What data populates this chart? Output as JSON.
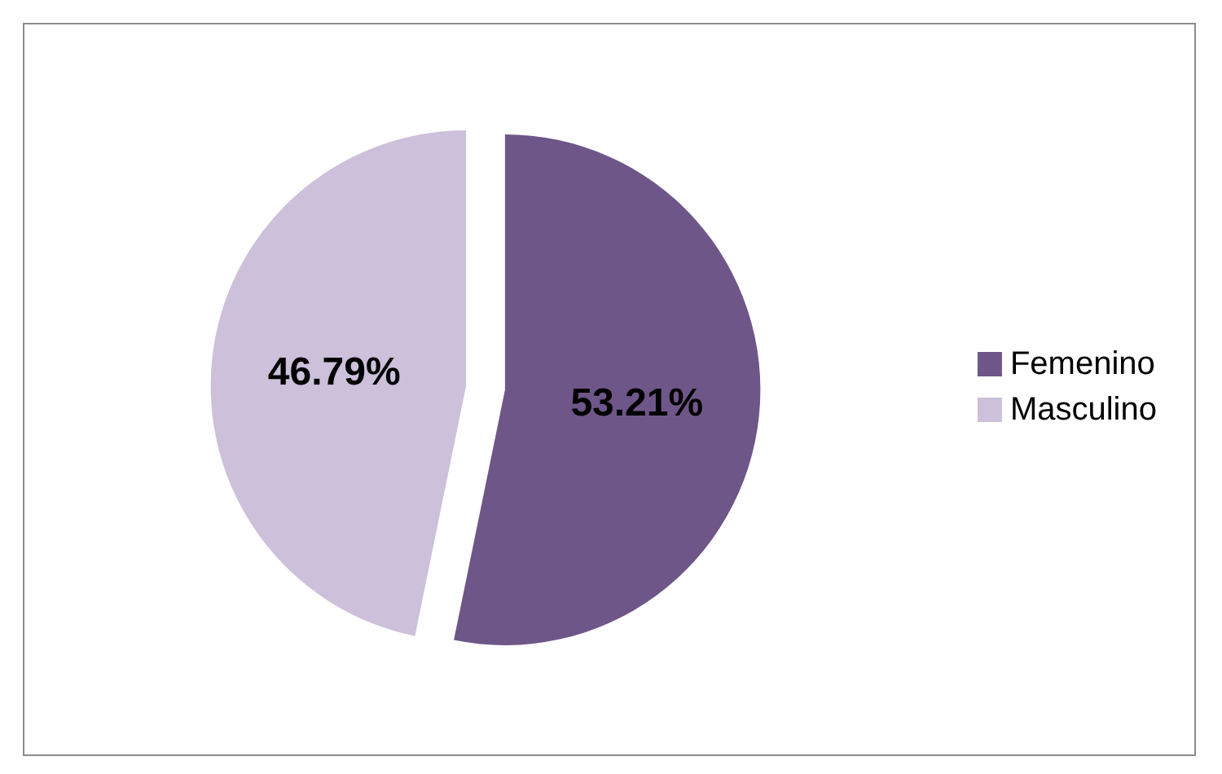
{
  "chart_data": {
    "type": "pie",
    "categories": [
      "Femenino",
      "Masculino"
    ],
    "values": [
      53.21,
      46.79
    ],
    "colors": [
      "#6f5689",
      "#ccc0da"
    ],
    "value_labels": [
      "53.21%",
      "46.79%"
    ],
    "legend": "right"
  }
}
